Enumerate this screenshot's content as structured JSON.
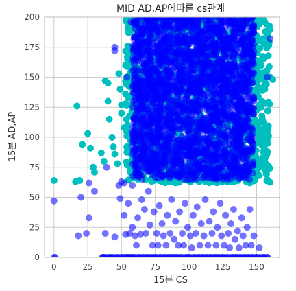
{
  "chart_data": {
    "type": "scatter",
    "title": "MID AD,AP에따른 cs관계",
    "xlabel": "15분 CS",
    "ylabel": "15분 AD,AP",
    "xlim": [
      -7,
      167
    ],
    "ylim": [
      0,
      200
    ],
    "xticks": [
      0,
      25,
      50,
      75,
      100,
      125,
      150
    ],
    "yticks": [
      0,
      25,
      50,
      75,
      100,
      125,
      150,
      175,
      200
    ],
    "grid": true,
    "legend": "none",
    "colors": {
      "teal": "#00bfbf",
      "blue": "#0000ff",
      "grid": "#cccccc",
      "frame": "#bdbdbd"
    },
    "series": [
      {
        "color": "#00bfbf",
        "alpha": 1.0,
        "dense_region": {
          "x": [
            53,
            160
          ],
          "y": [
            62,
            200
          ]
        },
        "points": [
          [
            0,
            64
          ],
          [
            16,
            63
          ],
          [
            19,
            64
          ],
          [
            17,
            126
          ],
          [
            21,
            94
          ],
          [
            25,
            103
          ],
          [
            27,
            91
          ],
          [
            29,
            75
          ],
          [
            30,
            71
          ],
          [
            35,
            87
          ],
          [
            37,
            80
          ],
          [
            38,
            147
          ],
          [
            40,
            145
          ],
          [
            40,
            130
          ],
          [
            41,
            115
          ],
          [
            43,
            100
          ],
          [
            44,
            92
          ],
          [
            45,
            86
          ],
          [
            47,
            78
          ],
          [
            48,
            153
          ],
          [
            49,
            140
          ],
          [
            50,
            127
          ],
          [
            50,
            120
          ],
          [
            52,
            108
          ],
          [
            53,
            160
          ],
          [
            54,
            150
          ],
          [
            55,
            134
          ],
          [
            56,
            118
          ],
          [
            57,
            96
          ],
          [
            58,
            72
          ],
          [
            59,
            66
          ],
          [
            60,
            190
          ],
          [
            63,
            175
          ],
          [
            156,
            90
          ],
          [
            158,
            88
          ],
          [
            160,
            150
          ],
          [
            162,
            148
          ],
          [
            150,
            72
          ],
          [
            148,
            66
          ],
          [
            145,
            62
          ]
        ]
      },
      {
        "color": "#0000ff",
        "alpha": 0.55,
        "dense_region": {
          "x": [
            58,
            148
          ],
          "y": [
            65,
            200
          ]
        },
        "points": [
          [
            0,
            0
          ],
          [
            1,
            0
          ],
          [
            0,
            47
          ],
          [
            18,
            18
          ],
          [
            24,
            20
          ],
          [
            20,
            50
          ],
          [
            26,
            33
          ],
          [
            26,
            62
          ],
          [
            30,
            55
          ],
          [
            36,
            0
          ],
          [
            37,
            0
          ],
          [
            38,
            20
          ],
          [
            39,
            75
          ],
          [
            41,
            0
          ],
          [
            43,
            0
          ],
          [
            45,
            17
          ],
          [
            47,
            0
          ],
          [
            48,
            60
          ],
          [
            49,
            49
          ],
          [
            50,
            63
          ],
          [
            51,
            0
          ],
          [
            52,
            35
          ],
          [
            53,
            19
          ],
          [
            54,
            0
          ],
          [
            55,
            0
          ],
          [
            55,
            45
          ],
          [
            56,
            20
          ],
          [
            57,
            0
          ],
          [
            58,
            60
          ],
          [
            58,
            25
          ],
          [
            59,
            0
          ],
          [
            60,
            18
          ],
          [
            61,
            10
          ],
          [
            62,
            33
          ],
          [
            63,
            0
          ],
          [
            64,
            19
          ],
          [
            65,
            48
          ],
          [
            66,
            0
          ],
          [
            67,
            40
          ],
          [
            68,
            20
          ],
          [
            69,
            0
          ],
          [
            70,
            55
          ],
          [
            71,
            27
          ],
          [
            72,
            0
          ],
          [
            73,
            10
          ],
          [
            74,
            38
          ],
          [
            75,
            0
          ],
          [
            76,
            20
          ],
          [
            77,
            10
          ],
          [
            78,
            43
          ],
          [
            79,
            0
          ],
          [
            80,
            28
          ],
          [
            81,
            18
          ],
          [
            82,
            0
          ],
          [
            83,
            10
          ],
          [
            84,
            35
          ],
          [
            85,
            0
          ],
          [
            86,
            20
          ],
          [
            87,
            48
          ],
          [
            88,
            0
          ],
          [
            89,
            15
          ],
          [
            90,
            30
          ],
          [
            91,
            0
          ],
          [
            92,
            10
          ],
          [
            93,
            38
          ],
          [
            94,
            0
          ],
          [
            95,
            20
          ],
          [
            96,
            10
          ],
          [
            97,
            45
          ],
          [
            98,
            0
          ],
          [
            99,
            25
          ],
          [
            100,
            0
          ],
          [
            101,
            18
          ],
          [
            102,
            8
          ],
          [
            103,
            35
          ],
          [
            104,
            0
          ],
          [
            105,
            20
          ],
          [
            106,
            42
          ],
          [
            107,
            0
          ],
          [
            108,
            10
          ],
          [
            109,
            28
          ],
          [
            110,
            0
          ],
          [
            111,
            18
          ],
          [
            112,
            48
          ],
          [
            113,
            0
          ],
          [
            114,
            10
          ],
          [
            115,
            30
          ],
          [
            116,
            0
          ],
          [
            117,
            20
          ],
          [
            118,
            38
          ],
          [
            119,
            0
          ],
          [
            120,
            10
          ],
          [
            121,
            25
          ],
          [
            122,
            0
          ],
          [
            123,
            45
          ],
          [
            124,
            18
          ],
          [
            125,
            0
          ],
          [
            126,
            10
          ],
          [
            127,
            35
          ],
          [
            128,
            0
          ],
          [
            129,
            20
          ],
          [
            130,
            8
          ],
          [
            131,
            28
          ],
          [
            132,
            0
          ],
          [
            133,
            40
          ],
          [
            134,
            15
          ],
          [
            135,
            0
          ],
          [
            136,
            22
          ],
          [
            137,
            8
          ],
          [
            138,
            0
          ],
          [
            139,
            33
          ],
          [
            140,
            18
          ],
          [
            141,
            0
          ],
          [
            142,
            10
          ],
          [
            143,
            25
          ],
          [
            144,
            0
          ],
          [
            145,
            40
          ],
          [
            146,
            10
          ],
          [
            147,
            0
          ],
          [
            148,
            18
          ],
          [
            150,
            0
          ],
          [
            152,
            8
          ],
          [
            155,
            0
          ],
          [
            158,
            0
          ],
          [
            45,
            175
          ],
          [
            45,
            172
          ],
          [
            52,
            62
          ],
          [
            54,
            150
          ],
          [
            160,
            182
          ],
          [
            158,
            150
          ],
          [
            62,
            198
          ],
          [
            57,
            196
          ]
        ]
      }
    ]
  }
}
